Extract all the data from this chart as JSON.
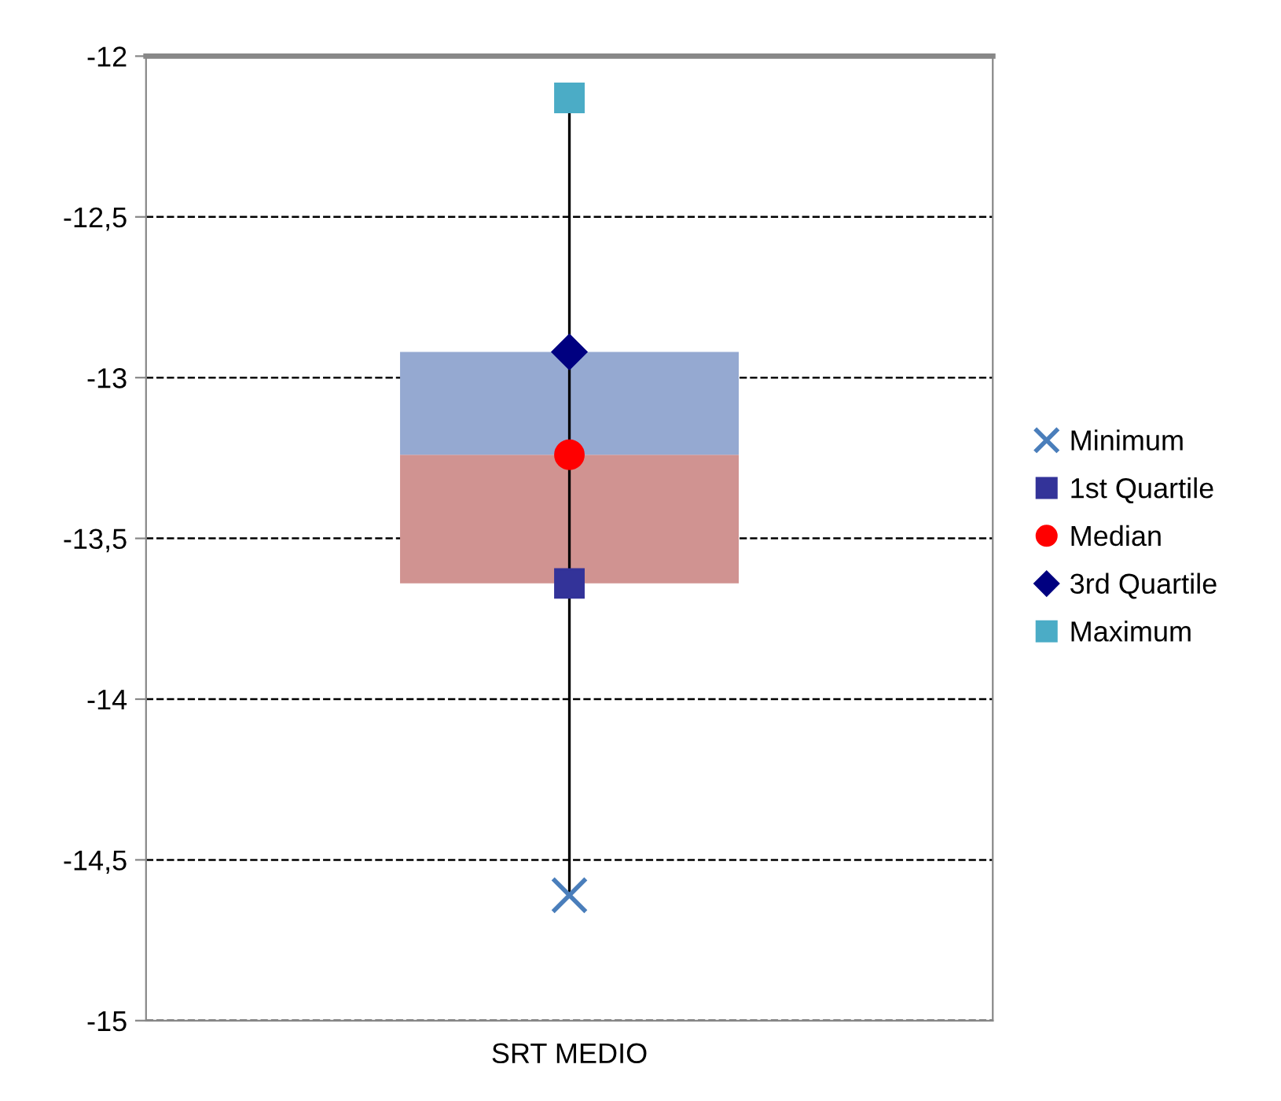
{
  "chart_data": {
    "type": "box",
    "categories": [
      "SRT MEDIO"
    ],
    "boxes": [
      {
        "low": -14.61,
        "q1": -13.64,
        "median": -13.24,
        "q3": -12.92,
        "high": -12.13
      }
    ],
    "colors": [
      [
        "#d09391",
        "#95a9d1"
      ]
    ],
    "series": [
      {
        "name": "Minimum",
        "type": "scatter",
        "values": [
          -14.61
        ],
        "color": "#4a7ebb",
        "marker": "cross"
      },
      {
        "name": "1st Quartile",
        "type": "scatter",
        "values": [
          -13.64
        ],
        "color": "#333399",
        "marker": "square"
      },
      {
        "name": "Median",
        "type": "scatter",
        "values": [
          -13.24
        ],
        "color": "#ff0000",
        "marker": "circle"
      },
      {
        "name": "3rd Quartile",
        "type": "scatter",
        "values": [
          -12.92
        ],
        "color": "#000080",
        "marker": "diamond"
      },
      {
        "name": "Maximum",
        "type": "scatter",
        "values": [
          -12.13
        ],
        "color": "#4bacc6",
        "marker": "square"
      }
    ],
    "ylim": [
      -15,
      -12
    ],
    "yticks": [
      {
        "value": -15,
        "label": "-15"
      },
      {
        "value": -14.5,
        "label": "-14,5"
      },
      {
        "value": -14,
        "label": "-14"
      },
      {
        "value": -13.5,
        "label": "-13,5"
      },
      {
        "value": -13,
        "label": "-13"
      },
      {
        "value": -12.5,
        "label": "-12,5"
      },
      {
        "value": -12,
        "label": "-12"
      }
    ],
    "grid": "y",
    "line_style": "dashed",
    "legend": "right"
  }
}
